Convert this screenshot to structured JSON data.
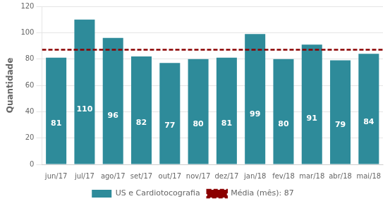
{
  "chart_data": {
    "type": "bar",
    "categories": [
      "jun/17",
      "jul/17",
      "ago/17",
      "set/17",
      "out/17",
      "nov/17",
      "dez/17",
      "jan/18",
      "fev/18",
      "mar/18",
      "abr/18",
      "mai/18"
    ],
    "series": [
      {
        "name": "US e Cardiotocografia",
        "color": "#2e8b9a",
        "values": [
          81,
          110,
          96,
          82,
          77,
          80,
          81,
          99,
          80,
          91,
          79,
          84
        ]
      }
    ],
    "mean": {
      "name": "Média (mês): 87",
      "value": 87,
      "color": "#8b0000",
      "line_style": "dashed"
    },
    "ylabel": "Quantidade",
    "ylim": [
      0,
      120
    ],
    "yticks": [
      0,
      20,
      40,
      60,
      80,
      100,
      120
    ],
    "grid": true,
    "legend": "bottom",
    "data_labels": true
  }
}
